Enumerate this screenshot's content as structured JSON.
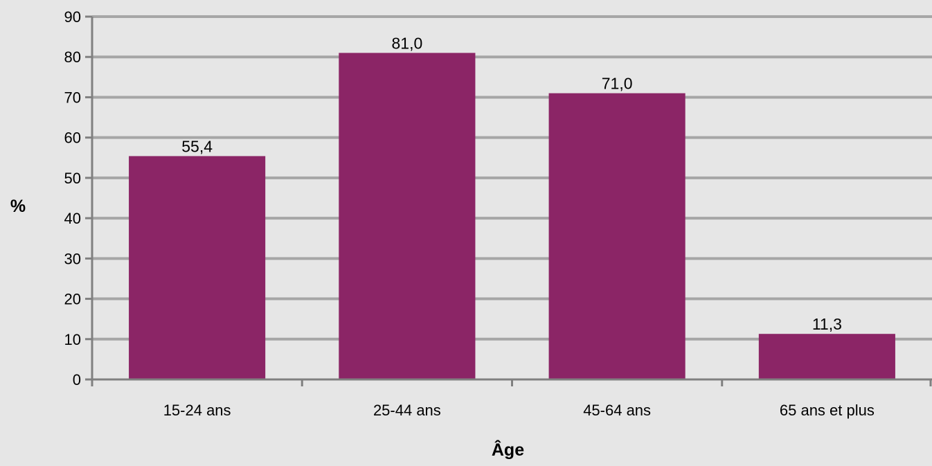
{
  "chart_data": {
    "type": "bar",
    "categories": [
      "15-24 ans",
      "25-44 ans",
      "45-64 ans",
      "65 ans et plus"
    ],
    "values": [
      55.4,
      81.0,
      71.0,
      11.3
    ],
    "data_labels": [
      "55,4",
      "81,0",
      "71,0",
      "11,3"
    ],
    "ylim": [
      0,
      90
    ],
    "y_ticks": [
      0,
      10,
      20,
      30,
      40,
      50,
      60,
      70,
      80,
      90
    ],
    "xlabel": "Âge",
    "ylabel": "%",
    "grid": true,
    "legend": "none",
    "colors": {
      "bar": "#8b2566",
      "gridline": "#a6a6a6",
      "axis": "#808080",
      "background": "#e6e6e6"
    }
  }
}
